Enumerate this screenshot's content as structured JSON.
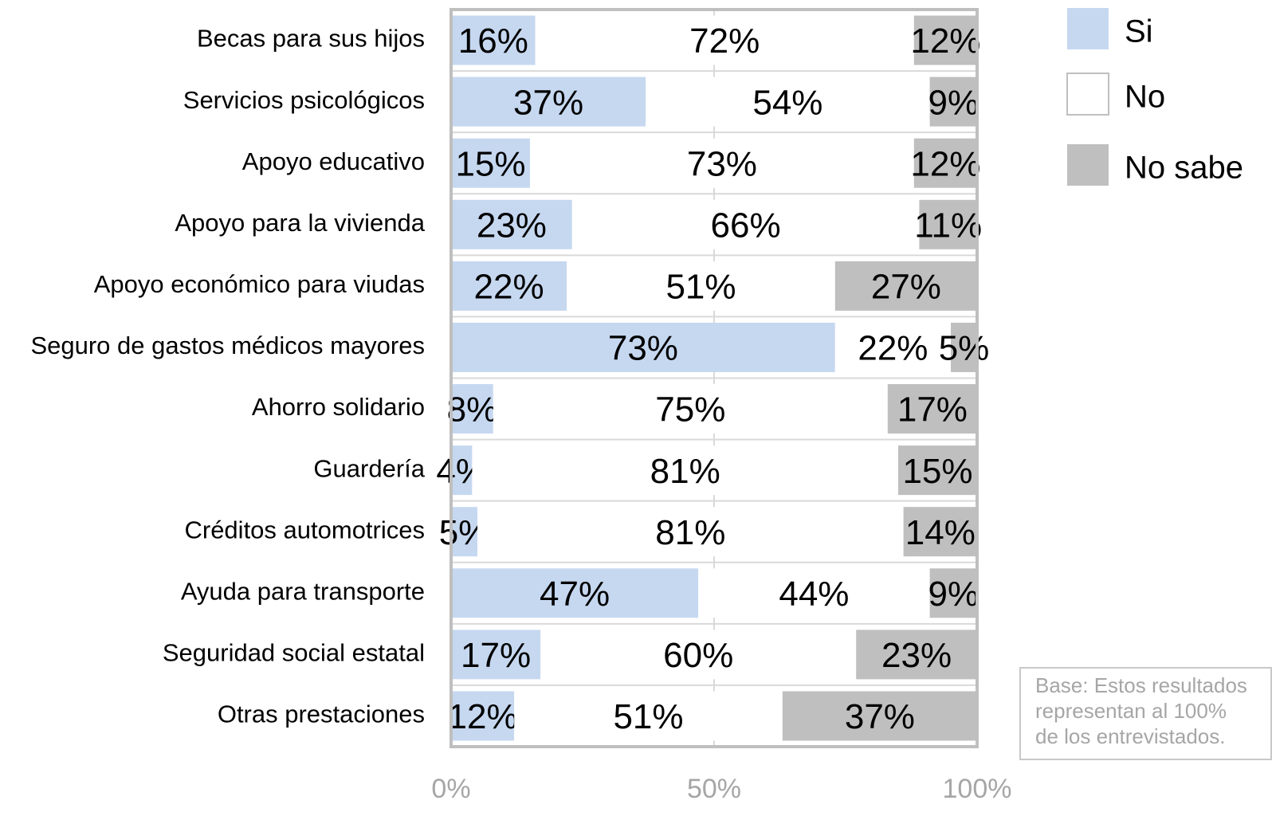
{
  "chart_data": {
    "type": "stacked-barh",
    "categories": [
      "Becas para sus hijos",
      "Servicios psicológicos",
      "Apoyo educativo",
      "Apoyo para la vivienda",
      "Apoyo económico para viudas",
      "Seguro de gastos médicos mayores",
      "Ahorro solidario",
      "Guardería",
      "Créditos automotrices",
      "Ayuda para transporte",
      "Seguridad social estatal",
      "Otras prestaciones"
    ],
    "series": [
      {
        "name": "Si",
        "color": "#c6d8f0",
        "values": [
          16,
          37,
          15,
          23,
          22,
          73,
          8,
          4,
          5,
          47,
          17,
          12
        ],
        "value_labels": [
          "16%",
          "37%",
          "15%",
          "23%",
          "22%",
          "73%",
          "8%",
          "4%",
          "5%",
          "47%",
          "17%",
          "12%"
        ]
      },
      {
        "name": "No",
        "color": "#ffffff",
        "values": [
          72,
          54,
          73,
          66,
          51,
          22,
          75,
          81,
          81,
          44,
          60,
          51
        ],
        "value_labels": [
          "72%",
          "54%",
          "73%",
          "66%",
          "51%",
          "22%",
          "75%",
          "81%",
          "81%",
          "44%",
          "60%",
          "51%"
        ]
      },
      {
        "name": "No sabe",
        "color": "#bfbfbf",
        "values": [
          12,
          9,
          12,
          11,
          27,
          5,
          17,
          15,
          14,
          9,
          23,
          37
        ],
        "value_labels": [
          "12%",
          "9%",
          "12%",
          "11%",
          "27%",
          "5%",
          "17%",
          "15%",
          "14%",
          "9%",
          "23%",
          "37%"
        ]
      }
    ],
    "xlim": [
      0,
      100
    ],
    "xticks": [
      {
        "value": 0,
        "label": "0%"
      },
      {
        "value": 50,
        "label": "50%"
      },
      {
        "value": 100,
        "label": "100%"
      }
    ],
    "grid": true,
    "legend": "right",
    "note": [
      "Base: Estos resultados",
      "representan al 100%",
      "de los entrevistados."
    ]
  }
}
